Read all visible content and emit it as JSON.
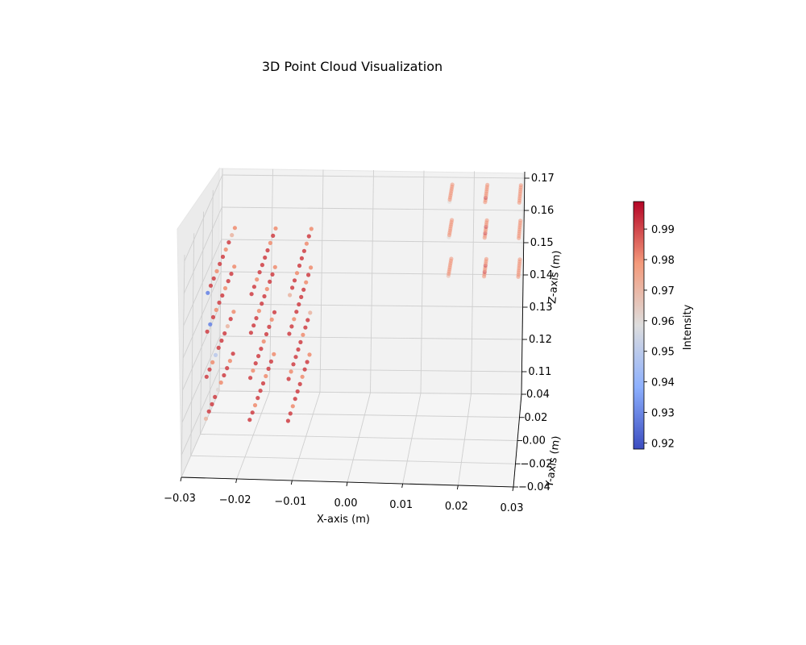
{
  "chart_data": {
    "type": "scatter",
    "dimensions": 3,
    "title": "3D Point Cloud Visualization",
    "xlabel": "X-axis (m)",
    "ylabel": "Y-axis (m)",
    "zlabel": "Z-axis (m)",
    "xlim": [
      -0.03,
      0.03
    ],
    "ylim": [
      -0.04,
      0.04
    ],
    "zlim": [
      0.103,
      0.172
    ],
    "x_ticks": [
      "−0.03",
      "−0.02",
      "−0.01",
      "0.00",
      "0.01",
      "0.02",
      "0.03"
    ],
    "y_ticks": [
      "−0.04",
      "−0.02",
      "0.00",
      "0.02",
      "0.04"
    ],
    "z_ticks": [
      "0.11",
      "0.12",
      "0.13",
      "0.14",
      "0.15",
      "0.16",
      "0.17"
    ],
    "grid": true,
    "colorbar": {
      "label": "Intensity",
      "colormap": "coolwarm",
      "range": [
        0.918,
        0.999
      ],
      "ticks": [
        "0.92",
        "0.93",
        "0.94",
        "0.95",
        "0.96",
        "0.97",
        "0.98",
        "0.99"
      ]
    },
    "point_groups": [
      {
        "x": -0.0265,
        "y_range": [
          -0.03,
          0.03
        ],
        "z": 0.118,
        "intensity": [
          0.97,
          0.99,
          0.99,
          0.99,
          0.96,
          0.98,
          0.99,
          0.99,
          0.98,
          0.99
        ]
      },
      {
        "x": -0.0265,
        "y_range": [
          -0.03,
          0.03
        ],
        "z": 0.131,
        "intensity": [
          0.99,
          0.99,
          0.98,
          0.95,
          0.99,
          0.99,
          0.99,
          0.97,
          0.99,
          0.98
        ]
      },
      {
        "x": -0.0265,
        "y_range": [
          -0.03,
          0.03
        ],
        "z": 0.145,
        "intensity": [
          0.99,
          0.93,
          0.99,
          0.98,
          0.99,
          0.99,
          0.98,
          0.99,
          0.99,
          0.98
        ]
      },
      {
        "x": -0.0265,
        "y_range": [
          -0.03,
          0.03
        ],
        "z": 0.157,
        "intensity": [
          0.93,
          0.99,
          0.99,
          0.98,
          0.99,
          0.99,
          0.98,
          0.99,
          0.97,
          0.98
        ]
      },
      {
        "x": -0.0185,
        "y_range": [
          -0.03,
          0.03
        ],
        "z": 0.118,
        "intensity": [
          0.99,
          0.99,
          0.98,
          0.99,
          0.99,
          0.99,
          0.98,
          0.99,
          0.99,
          0.98
        ]
      },
      {
        "x": -0.0185,
        "y_range": [
          -0.03,
          0.03
        ],
        "z": 0.131,
        "intensity": [
          0.99,
          0.98,
          0.99,
          0.99,
          0.99,
          0.98,
          0.99,
          0.99,
          0.98,
          0.99
        ]
      },
      {
        "x": -0.0185,
        "y_range": [
          -0.03,
          0.03
        ],
        "z": 0.145,
        "intensity": [
          0.99,
          0.99,
          0.99,
          0.98,
          0.99,
          0.99,
          0.98,
          0.99,
          0.99,
          0.98
        ]
      },
      {
        "x": -0.0185,
        "y_range": [
          -0.03,
          0.03
        ],
        "z": 0.157,
        "intensity": [
          0.99,
          0.99,
          0.98,
          0.99,
          0.99,
          0.99,
          0.99,
          0.98,
          0.99,
          0.98
        ]
      },
      {
        "x": -0.0115,
        "y_range": [
          -0.03,
          0.03
        ],
        "z": 0.118,
        "intensity": [
          0.99,
          0.99,
          0.98,
          0.99,
          0.99,
          0.99,
          0.98,
          0.99,
          0.99,
          0.98
        ]
      },
      {
        "x": -0.0115,
        "y_range": [
          -0.03,
          0.03
        ],
        "z": 0.131,
        "intensity": [
          0.99,
          0.98,
          0.99,
          0.99,
          0.99,
          0.99,
          0.98,
          0.99,
          0.99,
          0.97
        ]
      },
      {
        "x": -0.0115,
        "y_range": [
          -0.03,
          0.03
        ],
        "z": 0.145,
        "intensity": [
          0.99,
          0.99,
          0.98,
          0.99,
          0.99,
          0.99,
          0.99,
          0.98,
          0.99,
          0.98
        ]
      },
      {
        "x": -0.0115,
        "y_range": [
          -0.03,
          0.03
        ],
        "z": 0.157,
        "intensity": [
          0.97,
          0.99,
          0.99,
          0.98,
          0.99,
          0.99,
          0.99,
          0.98,
          0.99,
          0.98
        ]
      },
      {
        "x": 0.0155,
        "y_range": [
          0.03,
          0.045
        ],
        "z": 0.143,
        "intensity": [
          0.97,
          0.98,
          0.98,
          0.98,
          0.98,
          0.98,
          0.98,
          0.98,
          0.98
        ]
      },
      {
        "x": 0.0155,
        "y_range": [
          0.03,
          0.045
        ],
        "z": 0.155,
        "intensity": [
          0.96,
          0.98,
          0.98,
          0.98,
          0.98,
          0.98,
          0.98,
          0.98,
          0.98
        ]
      },
      {
        "x": 0.0155,
        "y_range": [
          0.03,
          0.045
        ],
        "z": 0.166,
        "intensity": [
          0.96,
          0.98,
          0.98,
          0.98,
          0.98,
          0.98,
          0.98,
          0.98,
          0.98
        ]
      },
      {
        "x": 0.0225,
        "y_range": [
          0.03,
          0.045
        ],
        "z": 0.143,
        "intensity": [
          0.98,
          0.98,
          0.99,
          0.98,
          0.98,
          0.99,
          0.98,
          0.98,
          0.98
        ]
      },
      {
        "x": 0.0225,
        "y_range": [
          0.03,
          0.045
        ],
        "z": 0.155,
        "intensity": [
          0.98,
          0.98,
          0.99,
          0.98,
          0.98,
          0.99,
          0.98,
          0.98,
          0.98
        ]
      },
      {
        "x": 0.0225,
        "y_range": [
          0.03,
          0.045
        ],
        "z": 0.166,
        "intensity": [
          0.98,
          0.98,
          0.99,
          0.98,
          0.98,
          0.98,
          0.98,
          0.98,
          0.98
        ]
      },
      {
        "x": 0.0292,
        "y_range": [
          0.03,
          0.045
        ],
        "z": 0.143,
        "intensity": [
          0.98,
          0.98,
          0.98,
          0.98,
          0.98,
          0.98,
          0.98,
          0.98,
          0.98
        ]
      },
      {
        "x": 0.0292,
        "y_range": [
          0.03,
          0.045
        ],
        "z": 0.155,
        "intensity": [
          0.98,
          0.98,
          0.98,
          0.98,
          0.98,
          0.98,
          0.98,
          0.98,
          0.98
        ]
      },
      {
        "x": 0.0292,
        "y_range": [
          0.03,
          0.045
        ],
        "z": 0.166,
        "intensity": [
          0.98,
          0.98,
          0.98,
          0.98,
          0.98,
          0.98,
          0.98,
          0.98,
          0.98
        ]
      }
    ]
  }
}
